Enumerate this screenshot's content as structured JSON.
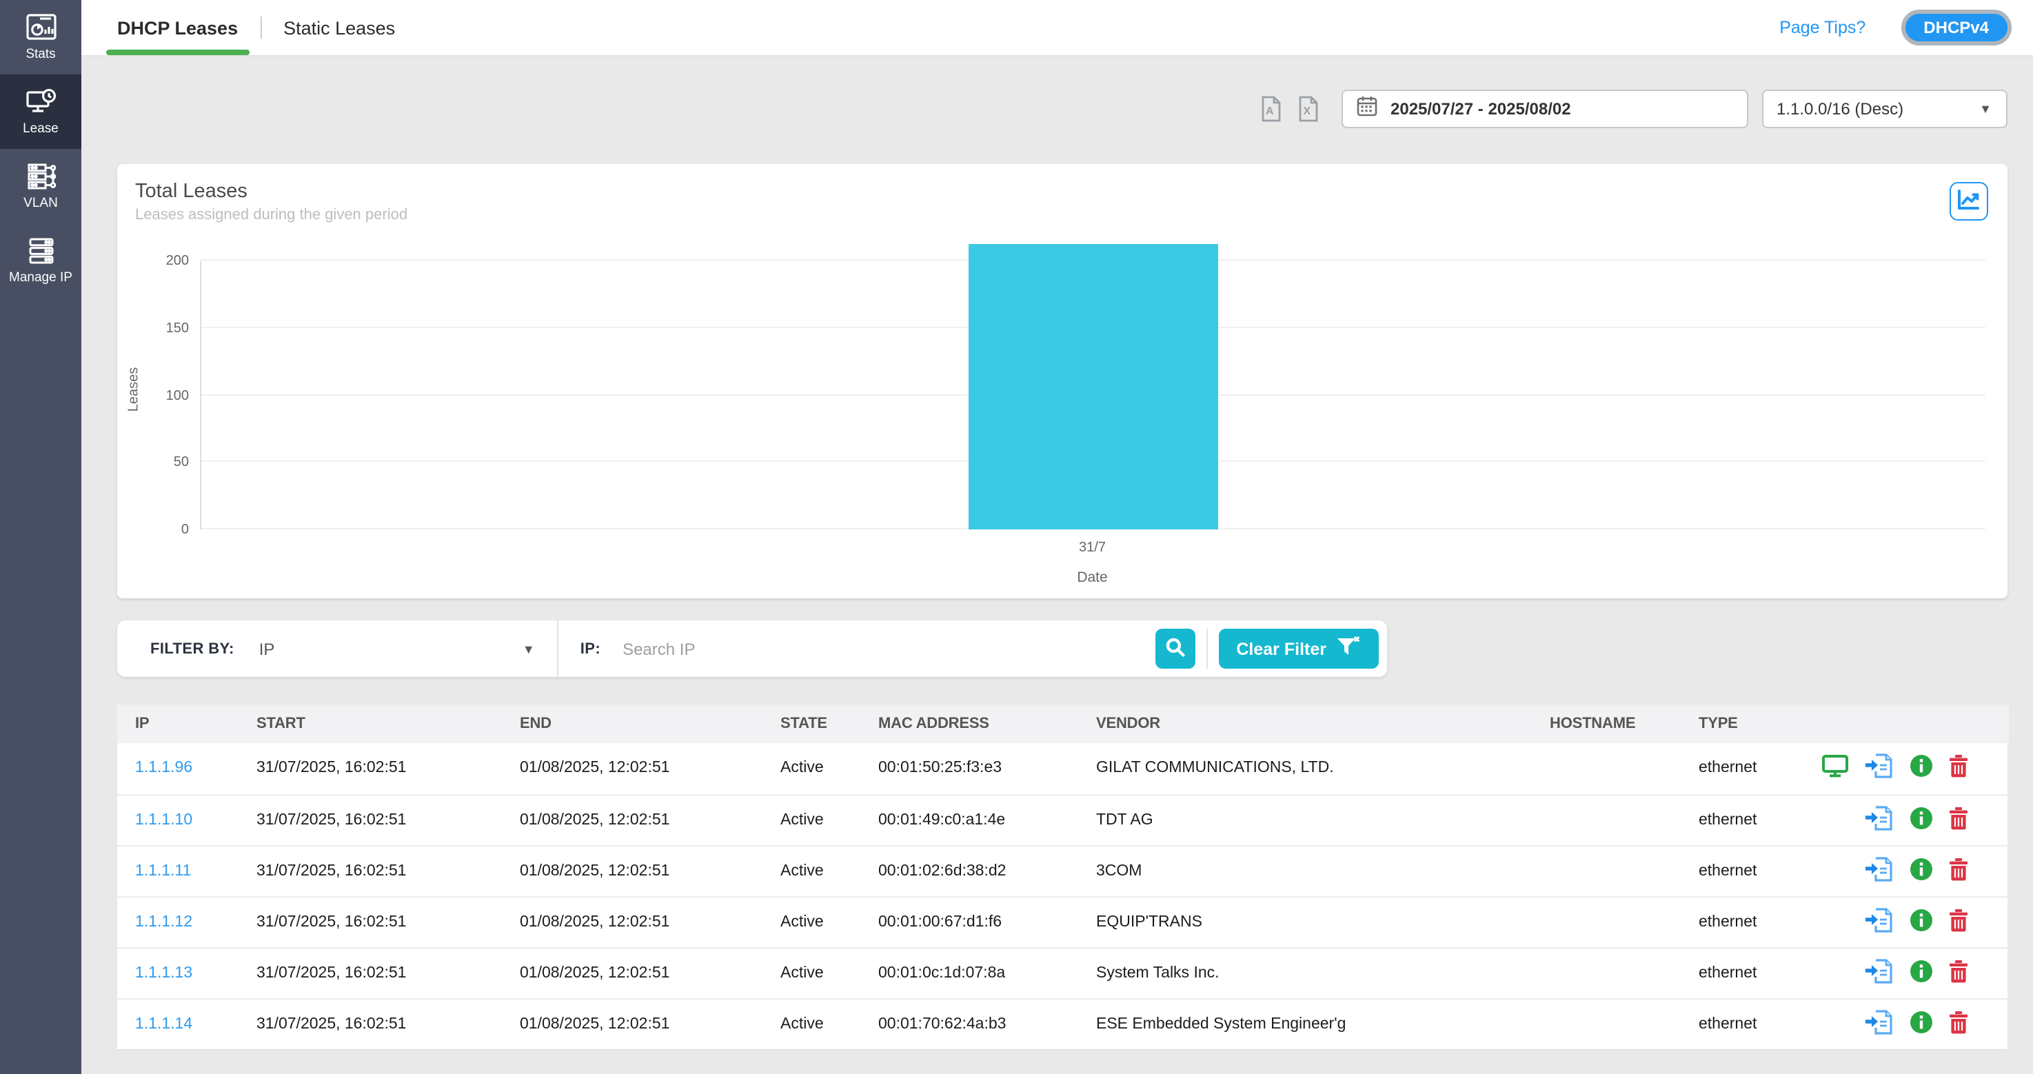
{
  "colors": {
    "accent_blue": "#2196f3",
    "accent_cyan": "#15b8cf",
    "bar_cyan": "#3cc9e3",
    "tab_green": "#4caf50",
    "sidebar_bg": "#484f62",
    "sidebar_active_bg": "#2b3040",
    "link_blue": "#2d9bf0",
    "icon_green": "#28a745",
    "icon_red": "#dc3545"
  },
  "sidebar": {
    "items": [
      {
        "label": "Stats",
        "icon": "stats-icon",
        "active": false
      },
      {
        "label": "Lease",
        "icon": "lease-icon",
        "active": true
      },
      {
        "label": "VLAN",
        "icon": "vlan-icon",
        "active": false
      },
      {
        "label": "Manage IP",
        "icon": "manage-ip-icon",
        "active": false
      }
    ]
  },
  "topbar": {
    "tabs": [
      {
        "label": "DHCP Leases",
        "active": true
      },
      {
        "label": "Static Leases",
        "active": false
      }
    ],
    "page_tips": "Page Tips?",
    "version_button": "DHCPv4"
  },
  "toolbar": {
    "export_pdf_icon": "pdf-export-icon",
    "export_excel_icon": "excel-export-icon",
    "date_range": "2025/07/27 - 2025/08/02",
    "subnet_selected": "1.1.0.0/16 (Desc)"
  },
  "chart_card": {
    "title": "Total Leases",
    "subtitle": "Leases assigned during the given period"
  },
  "chart_data": {
    "type": "bar",
    "title": "Total Leases",
    "categories": [
      "31/7"
    ],
    "values": [
      212
    ],
    "xlabel": "Date",
    "ylabel": "Leases",
    "ylim": [
      0,
      200
    ],
    "yticks": [
      0,
      50,
      100,
      150,
      200
    ],
    "grid": true,
    "legend": false,
    "bar_color": "#3cc9e3"
  },
  "filter": {
    "filter_by_label": "FILTER BY:",
    "filter_by_value": "IP",
    "ip_label": "IP:",
    "search_placeholder": "Search IP",
    "clear_button": "Clear Filter"
  },
  "table": {
    "columns": [
      "IP",
      "START",
      "END",
      "STATE",
      "MAC ADDRESS",
      "VENDOR",
      "HOSTNAME",
      "TYPE",
      ""
    ],
    "rows": [
      {
        "ip": "1.1.1.96",
        "start": "31/07/2025, 16:02:51",
        "end": "01/08/2025, 12:02:51",
        "state": "Active",
        "mac": "00:01:50:25:f3:e3",
        "vendor": "GILAT COMMUNICATIONS, LTD.",
        "hostname": "",
        "type": "ethernet"
      },
      {
        "ip": "1.1.1.10",
        "start": "31/07/2025, 16:02:51",
        "end": "01/08/2025, 12:02:51",
        "state": "Active",
        "mac": "00:01:49:c0:a1:4e",
        "vendor": "TDT AG",
        "hostname": "",
        "type": "ethernet"
      },
      {
        "ip": "1.1.1.11",
        "start": "31/07/2025, 16:02:51",
        "end": "01/08/2025, 12:02:51",
        "state": "Active",
        "mac": "00:01:02:6d:38:d2",
        "vendor": "3COM",
        "hostname": "",
        "type": "ethernet"
      },
      {
        "ip": "1.1.1.12",
        "start": "31/07/2025, 16:02:51",
        "end": "01/08/2025, 12:02:51",
        "state": "Active",
        "mac": "00:01:00:67:d1:f6",
        "vendor": "EQUIP'TRANS",
        "hostname": "",
        "type": "ethernet"
      },
      {
        "ip": "1.1.1.13",
        "start": "31/07/2025, 16:02:51",
        "end": "01/08/2025, 12:02:51",
        "state": "Active",
        "mac": "00:01:0c:1d:07:8a",
        "vendor": "System Talks Inc.",
        "hostname": "",
        "type": "ethernet"
      },
      {
        "ip": "1.1.1.14",
        "start": "31/07/2025, 16:02:51",
        "end": "01/08/2025, 12:02:51",
        "state": "Active",
        "mac": "00:01:70:62:4a:b3",
        "vendor": "ESE Embedded System Engineer'g",
        "hostname": "",
        "type": "ethernet"
      }
    ]
  }
}
